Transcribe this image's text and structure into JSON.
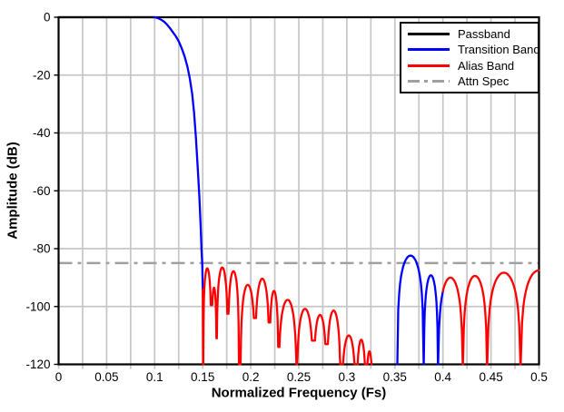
{
  "chart_data": {
    "type": "line",
    "title": "",
    "xlabel": "Normalized Frequency (Fs)",
    "ylabel": "Amplitude (dB)",
    "xlim": [
      0,
      0.5
    ],
    "ylim": [
      -120,
      0
    ],
    "x_ticks": [
      0,
      0.05,
      0.1,
      0.15,
      0.2,
      0.25,
      0.3,
      0.35,
      0.4,
      0.45,
      0.5
    ],
    "x_tick_labels": [
      "0",
      "0.05",
      "0.1",
      "0.15",
      "0.2",
      "0.25",
      "0.3",
      "0.35",
      "0.4",
      "0.45",
      "0.5"
    ],
    "y_ticks": [
      0,
      -20,
      -40,
      -60,
      -80,
      -100,
      -120
    ],
    "y_tick_labels": [
      "0",
      "-20",
      "-40",
      "-60",
      "-80",
      "-100",
      "-120"
    ],
    "x_minor_grid_step": 0.025,
    "grid": true,
    "legend_position": "top-right",
    "attn_spec_db": -85,
    "colors": {
      "passband": "#000000",
      "transition": "#0000ff",
      "alias": "#ff0000",
      "attn_spec": "#a0a0a0",
      "grid": "#c6c6c6",
      "frame": "#000000",
      "background": "#ffffff"
    },
    "legend": [
      {
        "label": "Passband",
        "color": "#000000",
        "style": "solid"
      },
      {
        "label": "Transition Band",
        "color": "#0000ff",
        "style": "solid"
      },
      {
        "label": "Alias Band",
        "color": "#ff0000",
        "style": "solid"
      },
      {
        "label": "Attn Spec",
        "color": "#a0a0a0",
        "style": "dashdot"
      }
    ],
    "bands": [
      {
        "band": "passband",
        "x_start": 0,
        "x_end": 0.1,
        "color": "#000000"
      },
      {
        "band": "transition",
        "x_start": 0.1,
        "x_end": 0.15,
        "color": "#0000ff"
      },
      {
        "band": "alias",
        "x_start": 0.15,
        "x_end": 0.35,
        "color": "#ff0000"
      },
      {
        "band": "transition-image",
        "x_start": 0.35,
        "x_end": 0.4,
        "color": "#0000ff"
      },
      {
        "band": "alias-2",
        "x_start": 0.4,
        "x_end": 0.5,
        "color": "#ff0000"
      }
    ],
    "curve": {
      "passband_points": [
        [
          0,
          0
        ],
        [
          0.1,
          0
        ]
      ],
      "transition_points": [
        [
          0.1,
          0
        ],
        [
          0.1035,
          -0.3
        ],
        [
          0.107,
          -0.9
        ],
        [
          0.11,
          -1.6
        ],
        [
          0.113,
          -2.6
        ],
        [
          0.116,
          -3.8
        ],
        [
          0.119,
          -5.2
        ],
        [
          0.122,
          -6.6
        ],
        [
          0.125,
          -8.3
        ],
        [
          0.128,
          -10.6
        ],
        [
          0.131,
          -13.4
        ],
        [
          0.134,
          -17.0
        ],
        [
          0.1365,
          -21.0
        ],
        [
          0.139,
          -26.5
        ],
        [
          0.141,
          -33.0
        ],
        [
          0.143,
          -42.0
        ],
        [
          0.145,
          -53.0
        ],
        [
          0.1465,
          -62.0
        ],
        [
          0.1478,
          -72.0
        ],
        [
          0.1488,
          -80.5
        ],
        [
          0.1495,
          -85.5
        ]
      ],
      "plunge_points": [
        [
          0.15,
          -94
        ],
        [
          0.1504,
          -122
        ]
      ],
      "lobe_format": [
        "x_null_left",
        "x_null_right",
        "peak_db",
        "left_edge_db",
        "right_edge_db"
      ],
      "lobes": [
        [
          0.1505,
          0.159,
          -86.8,
          -126,
          -99.5
        ],
        [
          0.159,
          0.1645,
          -93.5,
          -99.5,
          -111
        ],
        [
          0.1645,
          0.1762,
          -86.5,
          -111,
          -102.5
        ],
        [
          0.1762,
          0.1878,
          -87.8,
          -102.5,
          -126
        ],
        [
          0.1893,
          0.2045,
          -92.5,
          -126,
          -104
        ],
        [
          0.2045,
          0.2194,
          -90.4,
          -104,
          -105.5
        ],
        [
          0.2194,
          0.2289,
          -94.6,
          -105.5,
          -114
        ],
        [
          0.2289,
          0.2478,
          -97.7,
          -114,
          -126
        ],
        [
          0.2478,
          0.2652,
          -100.8,
          -126,
          -111.8
        ],
        [
          0.2652,
          0.279,
          -102.9,
          -111.8,
          -113
        ],
        [
          0.279,
          0.2935,
          -101.4,
          -113,
          -126
        ],
        [
          0.2945,
          0.3095,
          -110.0,
          -126,
          -126
        ],
        [
          0.31,
          0.32,
          -111.5,
          -126,
          -126
        ],
        [
          0.32,
          0.327,
          -115.5,
          -126,
          -126
        ],
        [
          0.3525,
          0.38,
          -82.4,
          -126,
          -126
        ],
        [
          0.38,
          0.3949,
          -89.2,
          -126,
          -126
        ],
        [
          0.3949,
          0.4207,
          -90.0,
          -126,
          -126
        ],
        [
          0.4207,
          0.446,
          -89.4,
          -126,
          -126
        ],
        [
          0.446,
          0.4808,
          -88.3,
          -126,
          -126
        ],
        [
          0.4808,
          0.519,
          -87.5,
          -126,
          -126
        ]
      ]
    }
  }
}
